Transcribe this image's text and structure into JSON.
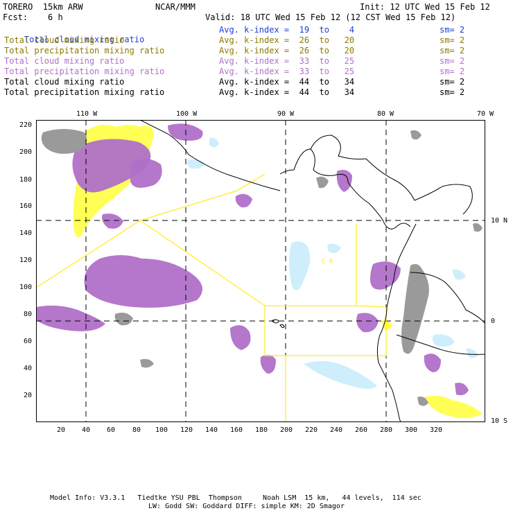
{
  "header": {
    "model": "TORERO  15km ARW",
    "org": "NCAR/MMM",
    "init": "Init: 12 UTC Wed 15 Feb 12",
    "fcst": "Fcst:    6 h",
    "valid": "Valid: 18 UTC Wed 15 Feb 12 (12 CST Wed 15 Feb 12)"
  },
  "legend": [
    {
      "field": "Total cloud mixing ratio",
      "kindex": "Avg. k-index =  19  to    4",
      "sm": "sm= 2",
      "color": "#1f3fd0"
    },
    {
      "field": "Total cloud mixing ratio",
      "kindex": "Avg. k-index =  26  to   20",
      "sm": "sm= 2",
      "color": "#8a7a00"
    },
    {
      "field": "Total precipitation mixing ratio",
      "kindex": "Avg. k-index =  26  to   20",
      "sm": "sm= 2",
      "color": "#8a7a00"
    },
    {
      "field": "Total cloud mixing ratio",
      "kindex": "Avg. k-index =  33  to   25",
      "sm": "sm= 2",
      "color": "#b070c8"
    },
    {
      "field": "Total precipitation mixing ratio",
      "kindex": "Avg. k-index =  33  to   25",
      "sm": "sm= 2",
      "color": "#b070c8"
    },
    {
      "field": "Total cloud mixing ratio",
      "kindex": "Avg. k-index =  44  to   34",
      "sm": "sm= 2",
      "color": "#000000"
    },
    {
      "field": "Total precipitation mixing ratio",
      "kindex": "Avg. k-index =  44  to   34",
      "sm": "sm= 2",
      "color": "#000000"
    }
  ],
  "axes": {
    "top_lon": [
      "110 W",
      "100 W",
      "90 W",
      "80 W",
      "70 W"
    ],
    "right_lat": [
      "10 N",
      "0",
      "10 S"
    ],
    "left_y": [
      "220",
      "200",
      "180",
      "160",
      "140",
      "120",
      "100",
      "80",
      "60",
      "40",
      "20"
    ],
    "bottom_x": [
      "20",
      "40",
      "60",
      "80",
      "100",
      "120",
      "140",
      "160",
      "180",
      "200",
      "220",
      "240",
      "260",
      "280",
      "300",
      "320"
    ]
  },
  "map_labels": {
    "cr": "C R"
  },
  "colors": {
    "cloud_low": "#cfeefc",
    "cloud_low_dark": "#9fd2ef",
    "yellow": "#ffff55",
    "magenta": "#b070c8",
    "gray": "#9a9a9a",
    "gray_dark": "#707070",
    "boundary": "#ffee22"
  },
  "footer": {
    "line1": "Model Info: V3.3.1   Tiedtke YSU PBL  Thompson     Noah LSM  15 km,   44 levels,  114 sec",
    "line2": "LW: Godd SW: Goddard DIFF: simple KM: 2D Smagor"
  }
}
